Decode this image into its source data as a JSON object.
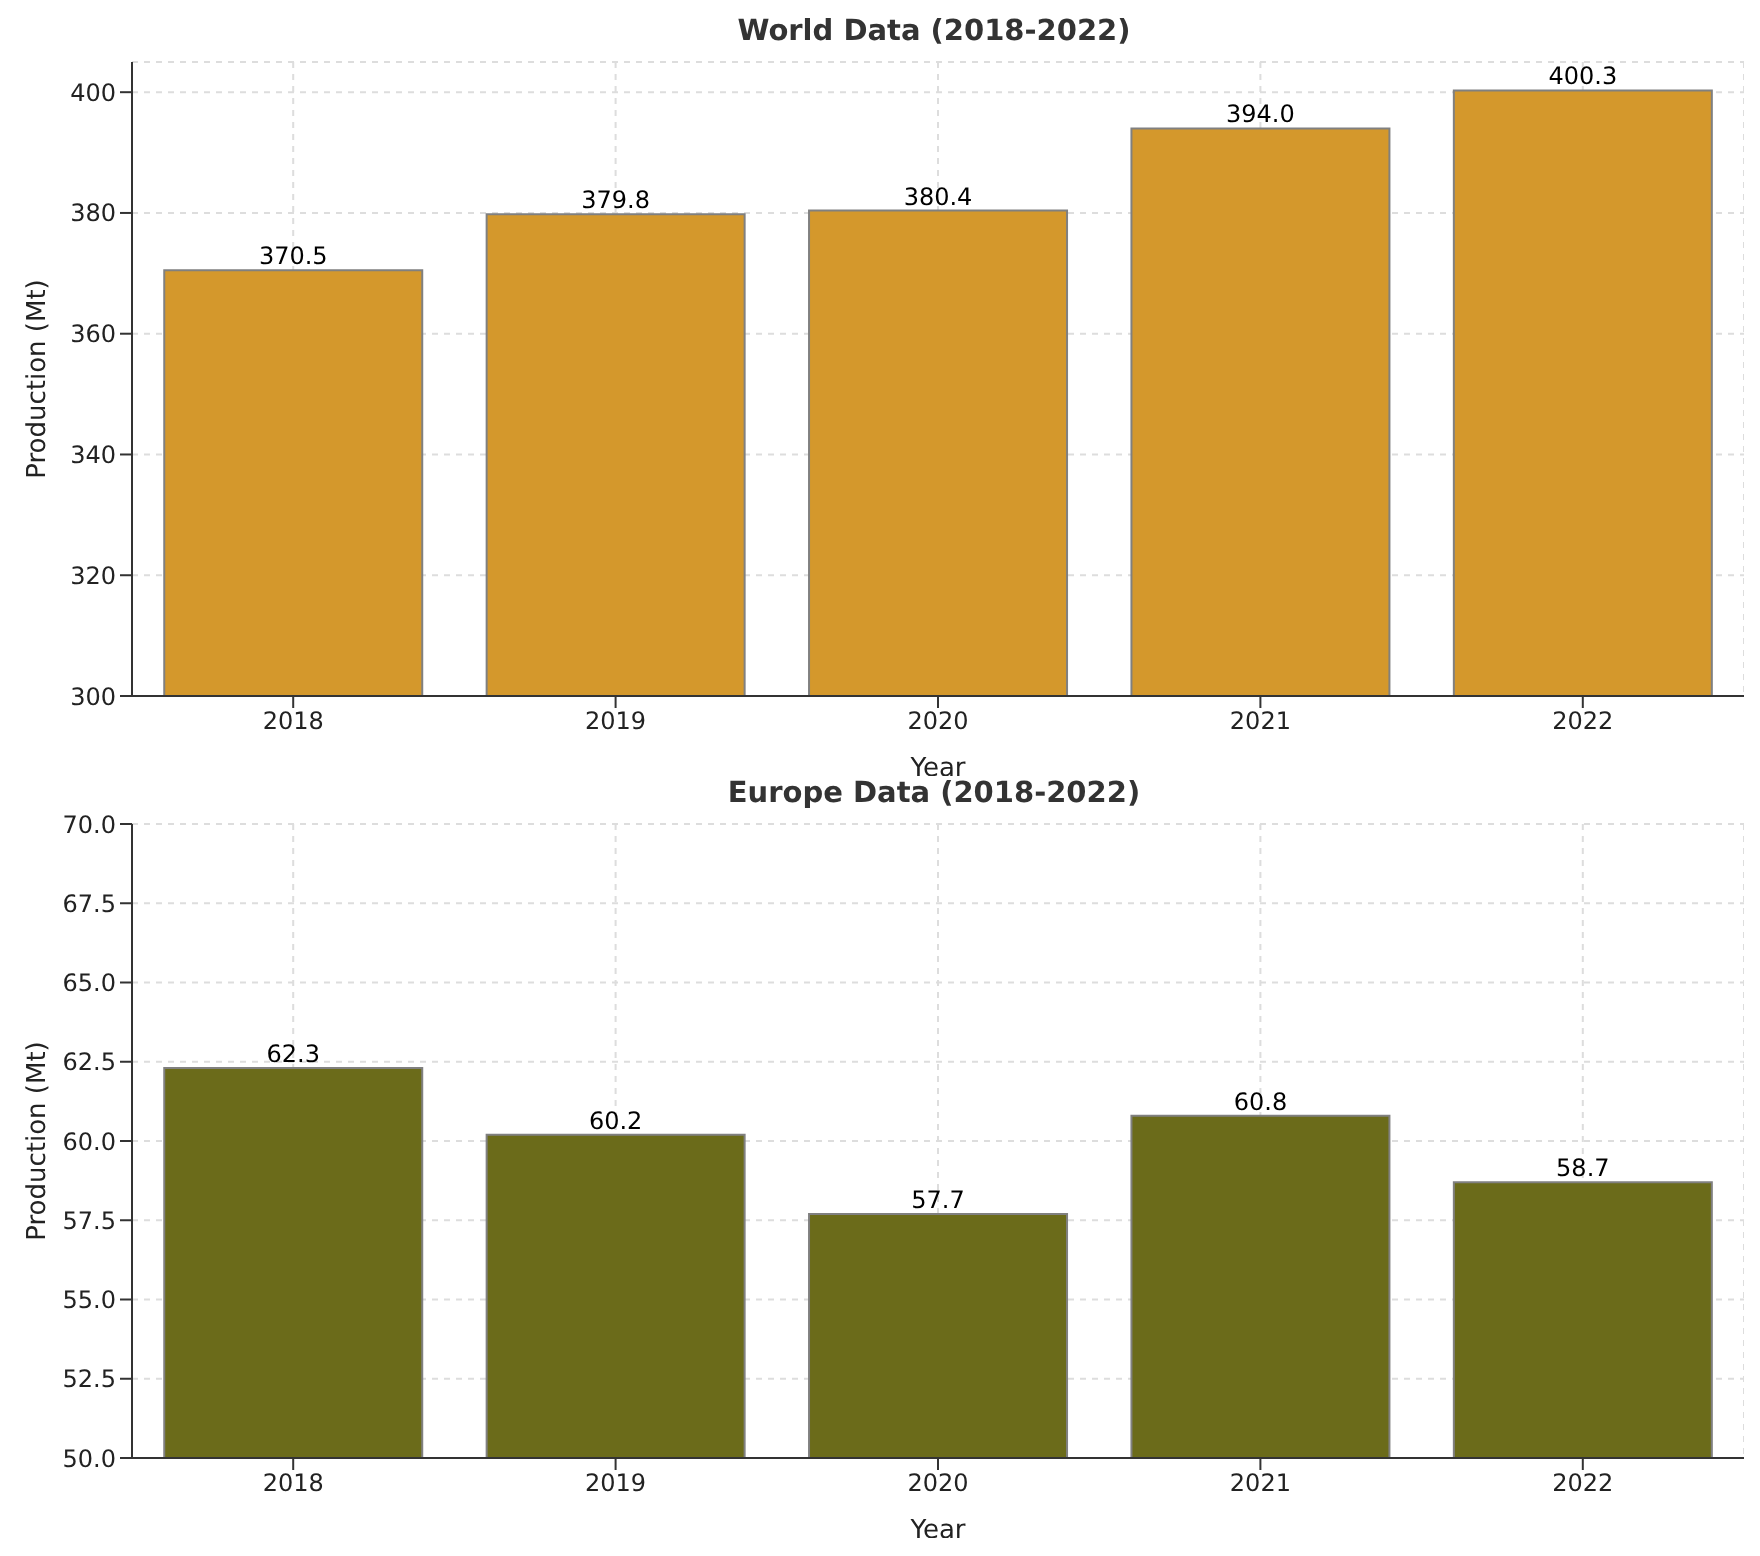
{
  "chart_data": [
    {
      "type": "bar",
      "title": "World Data (2018-2022)",
      "xlabel": "Year",
      "ylabel": "Production (Mt)",
      "categories": [
        "2018",
        "2019",
        "2020",
        "2021",
        "2022"
      ],
      "values": [
        370.5,
        379.8,
        380.4,
        394.0,
        400.3
      ],
      "value_labels": [
        "370.5",
        "379.8",
        "380.4",
        "394.0",
        "400.3"
      ],
      "color": "#d4982c",
      "ylim": [
        300,
        405
      ],
      "yticks": [
        300,
        320,
        340,
        360,
        380,
        400
      ],
      "grid": true
    },
    {
      "type": "bar",
      "title": "Europe Data (2018-2022)",
      "xlabel": "Year",
      "ylabel": "Production (Mt)",
      "categories": [
        "2018",
        "2019",
        "2020",
        "2021",
        "2022"
      ],
      "values": [
        62.3,
        60.2,
        57.7,
        60.8,
        58.7
      ],
      "value_labels": [
        "62.3",
        "60.2",
        "57.7",
        "60.8",
        "58.7"
      ],
      "color": "#6b6b1a",
      "ylim": [
        50,
        70
      ],
      "yticks": [
        {
          "value": 50,
          "label": "50.0"
        },
        {
          "value": 52.5,
          "label": "52.5"
        },
        {
          "value": 55,
          "label": "55.0"
        },
        {
          "value": 57.5,
          "label": "57.5"
        },
        {
          "value": 60,
          "label": "60.0"
        },
        {
          "value": 62.5,
          "label": "62.5"
        },
        {
          "value": 65,
          "label": "65.0"
        },
        {
          "value": 67.5,
          "label": "67.5"
        },
        {
          "value": 70,
          "label": "70.0"
        }
      ],
      "grid": true
    }
  ]
}
